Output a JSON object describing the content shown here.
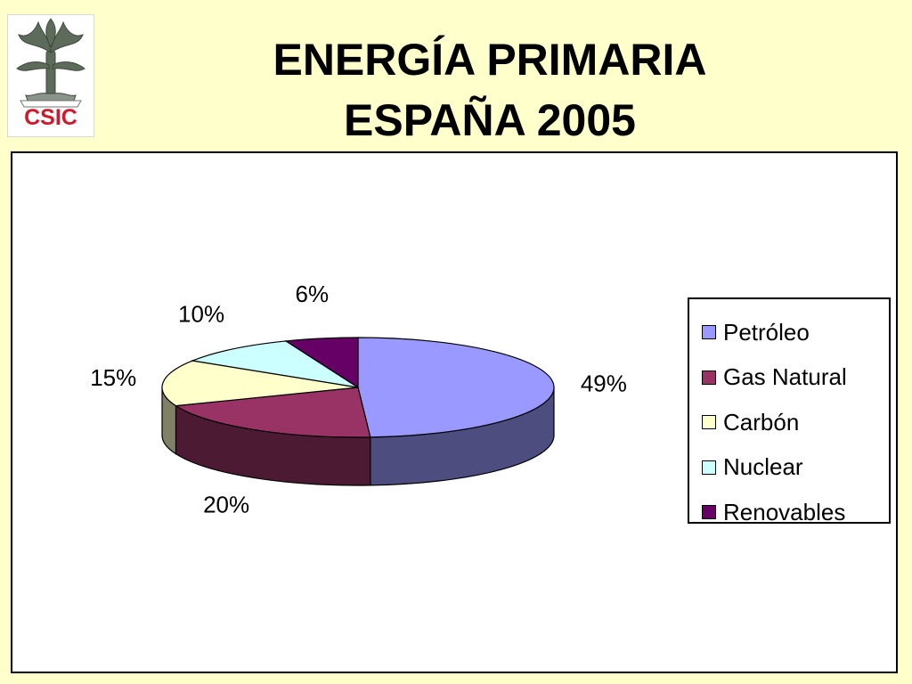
{
  "logo": {
    "text": "CSIC",
    "icon": "csic-tree-emblem"
  },
  "title": {
    "line1": "ENERGÍA PRIMARIA",
    "line2": "ESPAÑA 2005"
  },
  "chart_data": {
    "type": "pie",
    "style": "3d-exploded-perspective",
    "categories": [
      "Petróleo",
      "Gas Natural",
      "Carbón",
      "Nuclear",
      "Renovables"
    ],
    "values": [
      49,
      20,
      15,
      10,
      6
    ],
    "value_labels": [
      "49%",
      "20%",
      "15%",
      "10%",
      "6%"
    ],
    "colors": [
      "#9999FF",
      "#993366",
      "#FFFFCC",
      "#CCFFFF",
      "#660066"
    ],
    "legend_position": "right"
  }
}
